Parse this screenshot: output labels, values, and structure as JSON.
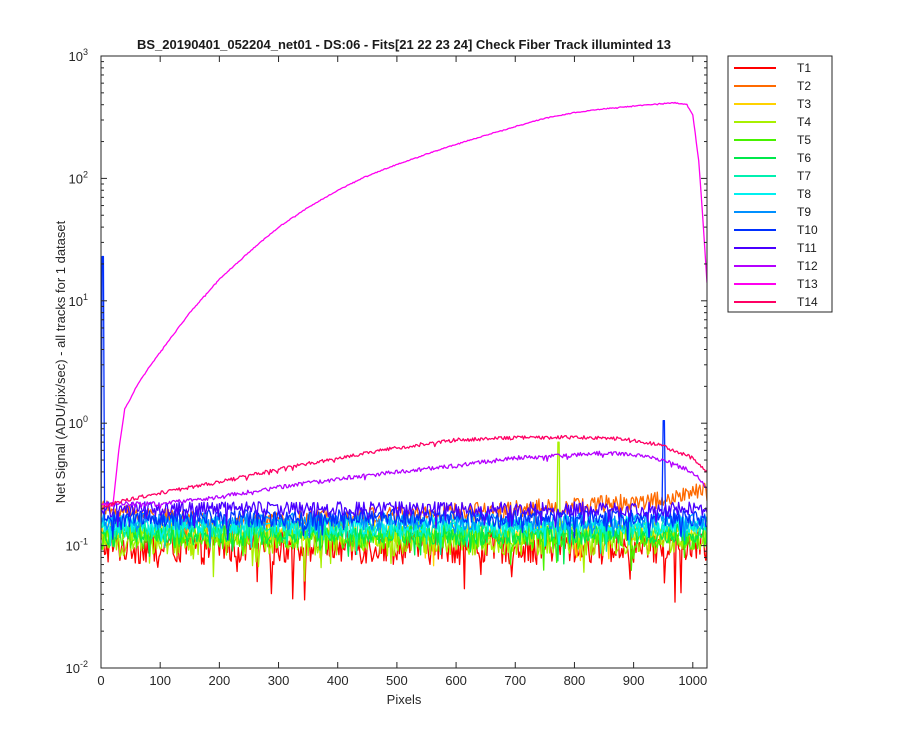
{
  "chart_data": {
    "type": "line",
    "title": "BS_20190401_052204_net01 - DS:06 - Fits[21  22  23  24]   Check Fiber     Track illuminted 13",
    "xlabel": "Pixels",
    "ylabel": "Net Signal (ADU/pix/sec) - all tracks for 1 dataset",
    "xlim": [
      0,
      1024
    ],
    "ylim": [
      0.01,
      1000
    ],
    "y_scale": "log",
    "grid": false,
    "legend_position": "outside-right",
    "x_ticks": [
      "0",
      "100",
      "200",
      "300",
      "400",
      "500",
      "600",
      "700",
      "800",
      "900",
      "1000"
    ],
    "y_ticks": [
      {
        "value": 0.01,
        "base": "10",
        "exp": "-2"
      },
      {
        "value": 0.1,
        "base": "10",
        "exp": "-1"
      },
      {
        "value": 1,
        "base": "10",
        "exp": "0"
      },
      {
        "value": 10,
        "base": "10",
        "exp": "1"
      },
      {
        "value": 100,
        "base": "10",
        "exp": "2"
      },
      {
        "value": 1000,
        "base": "10",
        "exp": "3"
      }
    ],
    "series": [
      {
        "name": "T1",
        "color": "#ff0000",
        "baseline": 0.1,
        "noise": 0.3
      },
      {
        "name": "T2",
        "color": "#ff6a00",
        "baseline": 0.14,
        "noise": 0.18,
        "points": [
          [
            0,
            0.2
          ],
          [
            200,
            0.15
          ],
          [
            500,
            0.18
          ],
          [
            800,
            0.21
          ],
          [
            950,
            0.24
          ],
          [
            1024,
            0.28
          ]
        ]
      },
      {
        "name": "T3",
        "color": "#ffd200",
        "baseline": 0.13,
        "noise": 0.22
      },
      {
        "name": "T4",
        "color": "#a8f000",
        "baseline": 0.11,
        "noise": 0.25,
        "spikes": [
          [
            773,
            0.7
          ]
        ]
      },
      {
        "name": "T5",
        "color": "#48f200",
        "baseline": 0.12,
        "noise": 0.22
      },
      {
        "name": "T6",
        "color": "#00e84b",
        "baseline": 0.125,
        "noise": 0.2
      },
      {
        "name": "T7",
        "color": "#00f0b0",
        "baseline": 0.14,
        "noise": 0.18
      },
      {
        "name": "T8",
        "color": "#00f0f0",
        "baseline": 0.15,
        "noise": 0.17
      },
      {
        "name": "T9",
        "color": "#0090ff",
        "baseline": 0.16,
        "noise": 0.16
      },
      {
        "name": "T10",
        "color": "#0030ff",
        "baseline": 0.17,
        "noise": 0.16,
        "spikes": [
          [
            3,
            23
          ],
          [
            951,
            1.05
          ]
        ]
      },
      {
        "name": "T11",
        "color": "#4a00ff",
        "baseline": 0.2,
        "noise": 0.14
      },
      {
        "name": "T12",
        "color": "#b400ff",
        "baseline": 0,
        "noise": 0.04,
        "points": [
          [
            0,
            0.22
          ],
          [
            100,
            0.22
          ],
          [
            200,
            0.25
          ],
          [
            300,
            0.3
          ],
          [
            400,
            0.35
          ],
          [
            500,
            0.4
          ],
          [
            600,
            0.45
          ],
          [
            700,
            0.52
          ],
          [
            800,
            0.55
          ],
          [
            850,
            0.57
          ],
          [
            900,
            0.55
          ],
          [
            950,
            0.5
          ],
          [
            1000,
            0.4
          ],
          [
            1024,
            0.3
          ]
        ]
      },
      {
        "name": "T13",
        "color": "#ff00f0",
        "baseline": 0,
        "noise": 0.008,
        "points": [
          [
            0,
            0.22
          ],
          [
            20,
            0.21
          ],
          [
            30,
            0.6
          ],
          [
            40,
            1.3
          ],
          [
            50,
            1.6
          ],
          [
            60,
            2
          ],
          [
            80,
            2.8
          ],
          [
            100,
            3.8
          ],
          [
            150,
            8
          ],
          [
            200,
            15
          ],
          [
            250,
            25
          ],
          [
            300,
            40
          ],
          [
            350,
            58
          ],
          [
            400,
            80
          ],
          [
            450,
            105
          ],
          [
            500,
            130
          ],
          [
            550,
            158
          ],
          [
            600,
            190
          ],
          [
            650,
            225
          ],
          [
            700,
            265
          ],
          [
            750,
            310
          ],
          [
            800,
            345
          ],
          [
            850,
            370
          ],
          [
            900,
            390
          ],
          [
            950,
            410
          ],
          [
            970,
            415
          ],
          [
            990,
            400
          ],
          [
            1000,
            330
          ],
          [
            1010,
            140
          ],
          [
            1018,
            40
          ],
          [
            1024,
            14
          ]
        ]
      },
      {
        "name": "T14",
        "color": "#ff0064",
        "baseline": 0,
        "noise": 0.035,
        "points": [
          [
            0,
            0.2
          ],
          [
            20,
            0.22
          ],
          [
            50,
            0.24
          ],
          [
            100,
            0.27
          ],
          [
            200,
            0.33
          ],
          [
            300,
            0.42
          ],
          [
            400,
            0.52
          ],
          [
            500,
            0.63
          ],
          [
            600,
            0.73
          ],
          [
            700,
            0.76
          ],
          [
            800,
            0.77
          ],
          [
            850,
            0.76
          ],
          [
            900,
            0.73
          ],
          [
            950,
            0.65
          ],
          [
            1000,
            0.52
          ],
          [
            1024,
            0.4
          ]
        ]
      }
    ]
  }
}
